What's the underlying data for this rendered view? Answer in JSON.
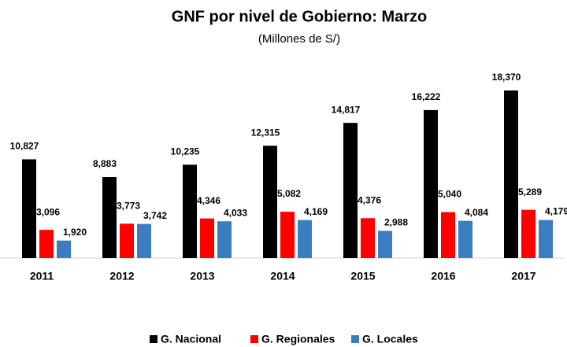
{
  "chart_data": {
    "type": "bar",
    "title": "GNF por nivel de Gobierno: Marzo",
    "subtitle": "(Millones de S/)",
    "categories": [
      "2011",
      "2012",
      "2013",
      "2014",
      "2015",
      "2016",
      "2017"
    ],
    "series": [
      {
        "name": "G. Nacional",
        "color": "#000000",
        "values": [
          10827,
          8883,
          10235,
          12315,
          14817,
          16222,
          18370
        ],
        "value_labels": [
          "10,827",
          "8,883",
          "10,235",
          "12,315",
          "14,817",
          "16,222",
          "18,370"
        ]
      },
      {
        "name": "G. Regionales",
        "color": "#ff0000",
        "values": [
          3096,
          3773,
          4346,
          5082,
          4376,
          5040,
          5289
        ],
        "value_labels": [
          "3,096",
          "3,773",
          "4,346",
          "5,082",
          "4,376",
          "5,040",
          "5,289"
        ]
      },
      {
        "name": "G. Locales",
        "color": "#3a7dc1",
        "values": [
          1920,
          3742,
          4033,
          4169,
          2988,
          4084,
          4179
        ],
        "value_labels": [
          "1,920",
          "3,742",
          "4,033",
          "4,169",
          "2,988",
          "4,084",
          "4,179"
        ]
      }
    ],
    "legend": "bottom"
  }
}
